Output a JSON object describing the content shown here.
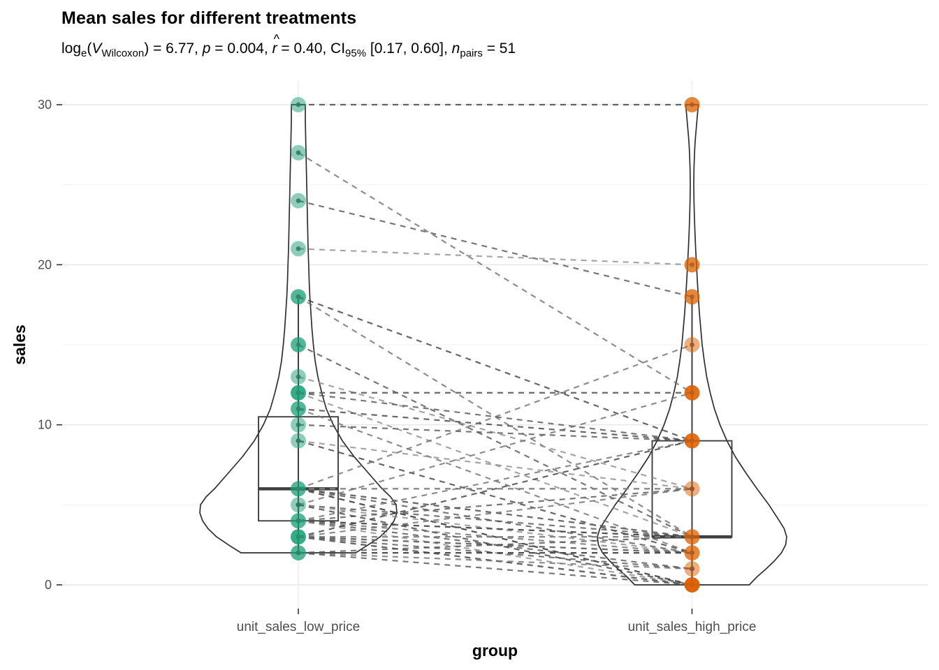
{
  "title": "Mean sales for different treatments",
  "subtitle": {
    "plain": "log_e(V_Wilcoxon) = 6.77, p = 0.004, r^ = 0.40, CI_95% [0.17, 0.60], n_pairs = 51",
    "hat_char": "^",
    "segments": [
      {
        "text": "log",
        "style": "normal"
      },
      {
        "text": "e",
        "style": "sub"
      },
      {
        "text": "(",
        "style": "normal"
      },
      {
        "text": "V",
        "style": "italic"
      },
      {
        "text": "Wilcoxon",
        "style": "sub"
      },
      {
        "text": ") = 6.77, ",
        "style": "normal"
      },
      {
        "text": "p",
        "style": "italic"
      },
      {
        "text": " = 0.004, ",
        "style": "normal"
      },
      {
        "text": "r",
        "style": "italic-hat"
      },
      {
        "text": " = 0.40, CI",
        "style": "normal"
      },
      {
        "text": "95%",
        "style": "sub"
      },
      {
        "text": " [0.17, 0.60], ",
        "style": "normal"
      },
      {
        "text": "n",
        "style": "italic"
      },
      {
        "text": "pairs",
        "style": "sub"
      },
      {
        "text": " = 51",
        "style": "normal"
      }
    ]
  },
  "chart_data": {
    "type": "paired violin + box plot (within-subjects comparison)",
    "title": "Mean sales for different treatments",
    "xlabel": "group",
    "ylabel": "sales",
    "x_categories": [
      "unit_sales_low_price",
      "unit_sales_high_price"
    ],
    "y_axis": {
      "ticks": [
        0,
        10,
        20,
        30
      ],
      "minor_ticks": [
        5,
        15,
        25
      ],
      "shown_range": [
        -1.5,
        31.5
      ]
    },
    "stats_summary": {
      "log_e_V_Wilcoxon": 6.77,
      "p": 0.004,
      "r_hat": 0.4,
      "ci95": [
        0.17,
        0.6
      ],
      "n_pairs": 51
    },
    "groups": [
      {
        "name": "unit_sales_low_price",
        "point_color": "#1B9E77",
        "box": {
          "q1": 4,
          "median": 6,
          "q3": 10.5,
          "whisker_low": 2,
          "whisker_high": 18
        },
        "points": [
          {
            "value": 30,
            "overlap": 1
          },
          {
            "value": 27,
            "overlap": 1
          },
          {
            "value": 24,
            "overlap": 1
          },
          {
            "value": 21,
            "overlap": 1
          },
          {
            "value": 18,
            "overlap": 2
          },
          {
            "value": 15,
            "overlap": 2
          },
          {
            "value": 13,
            "overlap": 1
          },
          {
            "value": 12,
            "overlap": 3
          },
          {
            "value": 11,
            "overlap": 2
          },
          {
            "value": 10,
            "overlap": 1
          },
          {
            "value": 9,
            "overlap": 1
          },
          {
            "value": 6,
            "overlap": 2
          },
          {
            "value": 5,
            "overlap": 1
          },
          {
            "value": 4,
            "overlap": 2
          },
          {
            "value": 3,
            "overlap": 3
          },
          {
            "value": 2,
            "overlap": 2
          }
        ],
        "violin_profile": [
          [
            30,
            10
          ],
          [
            29,
            10
          ],
          [
            28,
            10.5
          ],
          [
            27,
            11
          ],
          [
            26,
            11.5
          ],
          [
            25,
            12
          ],
          [
            24,
            12.5
          ],
          [
            23,
            13
          ],
          [
            22,
            13.5
          ],
          [
            21,
            14
          ],
          [
            20,
            14.8
          ],
          [
            19,
            15.5
          ],
          [
            18,
            16.5
          ],
          [
            17,
            18
          ],
          [
            16,
            19.5
          ],
          [
            15,
            21.5
          ],
          [
            14,
            24
          ],
          [
            13,
            28
          ],
          [
            12,
            33.5
          ],
          [
            11,
            40
          ],
          [
            10,
            50
          ],
          [
            9,
            63
          ],
          [
            8,
            80
          ],
          [
            7,
            100
          ],
          [
            6,
            120
          ],
          [
            5.5,
            132
          ],
          [
            5,
            140
          ],
          [
            4.5,
            141
          ],
          [
            4,
            137
          ],
          [
            3.5,
            129
          ],
          [
            3,
            117
          ],
          [
            2.5,
            100
          ],
          [
            2,
            82
          ]
        ]
      },
      {
        "name": "unit_sales_high_price",
        "point_color": "#D95F02",
        "box": {
          "q1": 3,
          "median": 3,
          "q3": 9,
          "whisker_low": 0,
          "whisker_high": 18
        },
        "points": [
          {
            "value": 30,
            "overlap": 2
          },
          {
            "value": 20,
            "overlap": 2
          },
          {
            "value": 18,
            "overlap": 2
          },
          {
            "value": 15,
            "overlap": 1
          },
          {
            "value": 12,
            "overlap": 3
          },
          {
            "value": 9,
            "overlap": 3
          },
          {
            "value": 6,
            "overlap": 1
          },
          {
            "value": 3,
            "overlap": 2
          },
          {
            "value": 2,
            "overlap": 2
          },
          {
            "value": 1,
            "overlap": 1
          },
          {
            "value": 0,
            "overlap": 4
          }
        ],
        "violin_profile": [
          [
            30,
            9
          ],
          [
            29.5,
            8
          ],
          [
            29,
            7
          ],
          [
            28.5,
            6
          ],
          [
            28,
            5
          ],
          [
            27.5,
            4.2
          ],
          [
            27,
            3.6
          ],
          [
            26,
            2.8
          ],
          [
            25,
            2.5
          ],
          [
            24,
            2.8
          ],
          [
            23,
            3.4
          ],
          [
            22,
            4.2
          ],
          [
            21,
            5.2
          ],
          [
            20,
            6.4
          ],
          [
            19,
            7.6
          ],
          [
            18,
            9
          ],
          [
            17,
            10.5
          ],
          [
            16,
            12.5
          ],
          [
            15,
            14.5
          ],
          [
            14,
            17.5
          ],
          [
            13,
            21
          ],
          [
            12,
            26
          ],
          [
            11,
            32
          ],
          [
            10,
            40
          ],
          [
            9,
            50
          ],
          [
            8,
            62
          ],
          [
            7,
            77
          ],
          [
            6,
            93
          ],
          [
            5,
            110
          ],
          [
            4,
            125
          ],
          [
            3.5,
            132
          ],
          [
            3,
            135.5
          ],
          [
            2.5,
            134
          ],
          [
            2,
            128
          ],
          [
            1.5,
            118
          ],
          [
            1,
            106
          ],
          [
            0.5,
            93
          ],
          [
            0,
            82
          ]
        ]
      }
    ],
    "pairs": [
      [
        30,
        30
      ],
      [
        27,
        12
      ],
      [
        24,
        18
      ],
      [
        21,
        20
      ],
      [
        18,
        9
      ],
      [
        18,
        3
      ],
      [
        15,
        3
      ],
      [
        13,
        6
      ],
      [
        12,
        12
      ],
      [
        12,
        12
      ],
      [
        12,
        9
      ],
      [
        12,
        3
      ],
      [
        11,
        9
      ],
      [
        11,
        2
      ],
      [
        10,
        9
      ],
      [
        9,
        6
      ],
      [
        9,
        2
      ],
      [
        6,
        15
      ],
      [
        6,
        6
      ],
      [
        6,
        6
      ],
      [
        6,
        3
      ],
      [
        6,
        3
      ],
      [
        6,
        2
      ],
      [
        6,
        0
      ],
      [
        6,
        0
      ],
      [
        5,
        12
      ],
      [
        5,
        3
      ],
      [
        5,
        2
      ],
      [
        5,
        0
      ],
      [
        4,
        9
      ],
      [
        4,
        6
      ],
      [
        4,
        3
      ],
      [
        4,
        3
      ],
      [
        4,
        2
      ],
      [
        4,
        1
      ],
      [
        4,
        0
      ],
      [
        3,
        9
      ],
      [
        3,
        6
      ],
      [
        3,
        3
      ],
      [
        3,
        3
      ],
      [
        3,
        2
      ],
      [
        3,
        2
      ],
      [
        3,
        1
      ],
      [
        3,
        0
      ],
      [
        3,
        0
      ],
      [
        3,
        0
      ],
      [
        2,
        3
      ],
      [
        2,
        2
      ],
      [
        2,
        2
      ],
      [
        2,
        1
      ],
      [
        2,
        0
      ]
    ],
    "layout_hints": {
      "grid": "major+minor horizontal, category vertical",
      "legend": "none"
    }
  },
  "style": {
    "grid_major_color": "#E7E7E7",
    "grid_minor_color": "#F3F3F3",
    "grid_vertical_color": "#ECECEC",
    "axis_text_color": "#4D4D4D",
    "tick_color": "#333333",
    "violin_stroke": "#2E2E2E",
    "box_stroke": "#3F3F3F",
    "pair_line_shades": [
      "#3C3C3C",
      "#6E6E6E",
      "#515151",
      "#8C8C8C"
    ],
    "overlap_opacity": {
      "1": 0.5,
      "2": 0.75,
      "3": 0.88,
      "4": 0.96
    }
  }
}
